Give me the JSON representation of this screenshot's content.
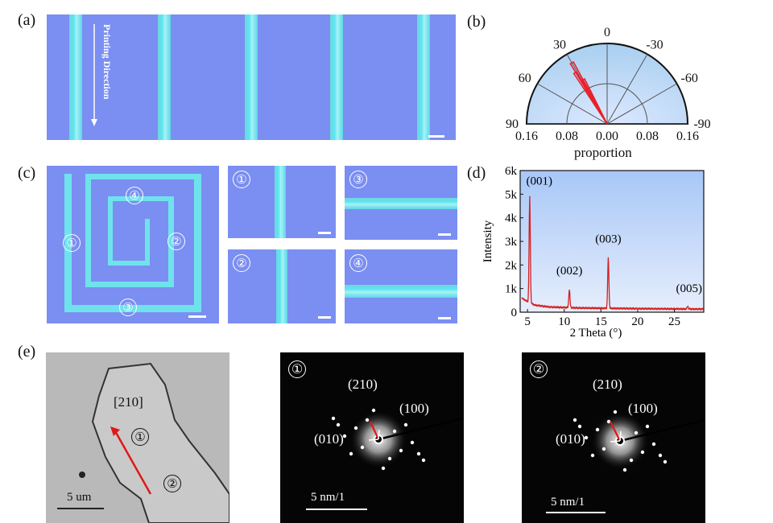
{
  "panels": {
    "a": {
      "letter": "(a)",
      "caption": "Printing Direction"
    },
    "b": {
      "letter": "(b)",
      "angle_labels": [
        "0",
        "30",
        "-30",
        "60",
        "-60",
        "90",
        "-90"
      ],
      "radial_ticks": [
        "0.16",
        "0.08",
        "0.00",
        "0.08",
        "0.16"
      ],
      "xlabel": "proportion"
    },
    "c": {
      "letter": "(c)",
      "markers": [
        "①",
        "②",
        "③",
        "④"
      ]
    },
    "d": {
      "letter": "(d)"
    },
    "e": {
      "letter": "(e)",
      "tem": {
        "zone": "[210]",
        "mark1": "①",
        "mark2": "②",
        "scale": "5 um"
      },
      "saed1": {
        "mark": "①",
        "l210": "(210)",
        "l100": "(100)",
        "l010": "(010)",
        "scale": "5 nm/1"
      },
      "saed2": {
        "mark": "②",
        "l210": "(210)",
        "l100": "(100)",
        "l010": "(010)",
        "scale": "5 nm/1"
      }
    }
  },
  "chart_data": [
    {
      "panel": "b",
      "type": "polar_histogram",
      "angle_axis": {
        "ticks": [
          90,
          60,
          30,
          0,
          -30,
          -60,
          -90
        ]
      },
      "radial_axis": {
        "ticks": [
          0.0,
          0.08,
          0.16
        ],
        "max": 0.16
      },
      "xlabel": "proportion",
      "lobes": [
        {
          "angle": 30,
          "value": 0.14
        },
        {
          "angle": 32,
          "value": 0.12
        },
        {
          "angle": 28,
          "value": 0.1
        }
      ],
      "color": "#e8202a"
    },
    {
      "panel": "d",
      "type": "line",
      "xlabel": "2 Theta (°)",
      "ylabel": "Intensity",
      "xlim": [
        4,
        29
      ],
      "ylim": [
        0,
        6000
      ],
      "xticks": [
        5,
        10,
        15,
        20,
        25
      ],
      "yticks": [
        0,
        1000,
        2000,
        3000,
        4000,
        5000,
        6000
      ],
      "ytick_labels": [
        "0",
        "1k",
        "2k",
        "3k",
        "4k",
        "5k",
        "6k"
      ],
      "color": "#d42020",
      "peaks": [
        {
          "x": 5.3,
          "y": 4900,
          "label": "(001)"
        },
        {
          "x": 10.7,
          "y": 950,
          "label": "(002)"
        },
        {
          "x": 16.0,
          "y": 2300,
          "label": "(003)"
        },
        {
          "x": 26.8,
          "y": 250,
          "label": "(005)"
        }
      ],
      "baseline": [
        [
          4.2,
          600
        ],
        [
          5.0,
          450
        ],
        [
          6,
          300
        ],
        [
          8,
          220
        ],
        [
          12,
          180
        ],
        [
          20,
          150
        ],
        [
          29,
          130
        ]
      ]
    }
  ]
}
